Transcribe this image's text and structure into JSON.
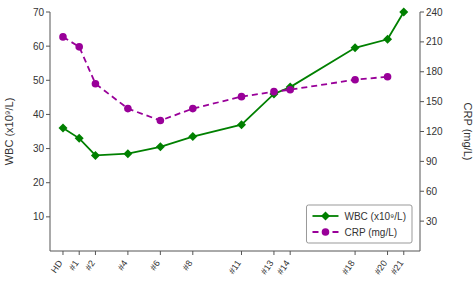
{
  "chart_data": {
    "type": "line",
    "x": [
      0,
      1,
      2,
      4,
      6,
      8,
      11,
      13,
      14,
      18,
      20,
      21
    ],
    "xlim": [
      -0.8,
      22
    ],
    "xticks": [
      {
        "value": 0,
        "label": "HD"
      },
      {
        "value": 1,
        "label": "#1"
      },
      {
        "value": 2,
        "label": "#2"
      },
      {
        "value": 4,
        "label": "#4"
      },
      {
        "value": 6,
        "label": "#6"
      },
      {
        "value": 8,
        "label": "#8"
      },
      {
        "value": 11,
        "label": "#11"
      },
      {
        "value": 13,
        "label": "#13"
      },
      {
        "value": 14,
        "label": "#14"
      },
      {
        "value": 18,
        "label": "#18"
      },
      {
        "value": 20,
        "label": "#20"
      },
      {
        "value": 21,
        "label": "#21"
      }
    ],
    "ylabel": "WBC (x10⁹/L)",
    "y2label": "CRP (mg/L)",
    "ylim": [
      0,
      70
    ],
    "yticks": [
      10,
      20,
      30,
      40,
      50,
      60,
      70
    ],
    "y2lim": [
      0,
      240
    ],
    "y2ticks": [
      30,
      60,
      90,
      120,
      150,
      180,
      210,
      240
    ],
    "grid": false,
    "legend": "lower right",
    "series": [
      {
        "name": "WBC (x10⁹/L)",
        "color": "#008000",
        "marker": "diamond",
        "line_style": "solid",
        "values": [
          36,
          33,
          28,
          28.5,
          30.5,
          33.5,
          37,
          46,
          48,
          59.5,
          62,
          70
        ]
      },
      {
        "name": "CRP (mg/L)",
        "color": "#990099",
        "marker": "circle",
        "line_style": "dashed",
        "axis": "y2",
        "values": [
          215,
          205,
          168,
          143,
          131,
          143,
          155,
          160,
          162,
          172,
          175,
          null
        ]
      }
    ]
  }
}
